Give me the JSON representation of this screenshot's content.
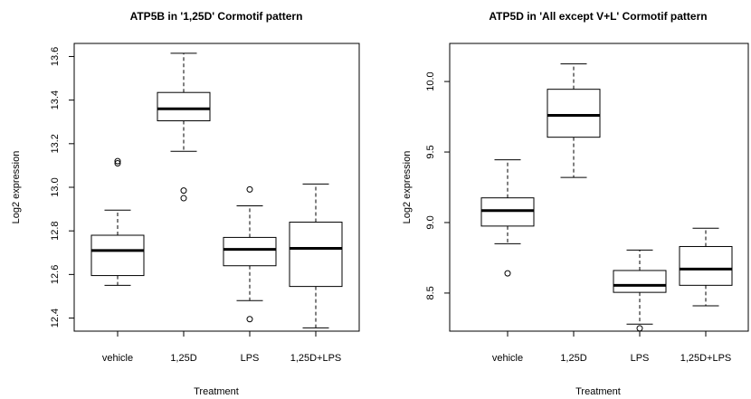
{
  "chart_data": [
    {
      "type": "boxplot",
      "title": "ATP5B in '1,25D' Cormotif pattern",
      "xlabel": "Treatment",
      "ylabel": "Log2 expression",
      "categories": [
        "vehicle",
        "1,25D",
        "LPS",
        "1,25D+LPS"
      ],
      "yticks": [
        "12.4",
        "12.6",
        "12.8",
        "13.0",
        "13.2",
        "13.4",
        "13.6"
      ],
      "ylim": [
        12.34,
        13.66
      ],
      "boxes": [
        {
          "category": "vehicle",
          "whisker_low": 12.55,
          "q1": 12.595,
          "median": 12.71,
          "q3": 12.78,
          "whisker_high": 12.895,
          "outliers": [
            13.11,
            13.12
          ]
        },
        {
          "category": "1,25D",
          "whisker_low": 13.165,
          "q1": 13.305,
          "median": 13.36,
          "q3": 13.435,
          "whisker_high": 13.615,
          "outliers": [
            12.95,
            12.985
          ]
        },
        {
          "category": "LPS",
          "whisker_low": 12.48,
          "q1": 12.64,
          "median": 12.715,
          "q3": 12.77,
          "whisker_high": 12.915,
          "outliers": [
            12.99,
            12.395
          ]
        },
        {
          "category": "1,25D+LPS",
          "whisker_low": 12.355,
          "q1": 12.545,
          "median": 12.72,
          "q3": 12.84,
          "whisker_high": 13.015,
          "outliers": []
        }
      ]
    },
    {
      "type": "boxplot",
      "title": "ATP5D in 'All except V+L' Cormotif pattern",
      "xlabel": "Treatment",
      "ylabel": "Log2 expression",
      "categories": [
        "vehicle",
        "1,25D",
        "LPS",
        "1,25D+LPS"
      ],
      "yticks": [
        "8.5",
        "9.0",
        "9.5",
        "10.0"
      ],
      "ylim": [
        8.23,
        10.27
      ],
      "boxes": [
        {
          "category": "vehicle",
          "whisker_low": 8.85,
          "q1": 8.975,
          "median": 9.085,
          "q3": 9.175,
          "whisker_high": 9.445,
          "outliers": [
            8.64
          ]
        },
        {
          "category": "1,25D",
          "whisker_low": 9.32,
          "q1": 9.605,
          "median": 9.76,
          "q3": 9.945,
          "whisker_high": 10.125,
          "outliers": []
        },
        {
          "category": "LPS",
          "whisker_low": 8.28,
          "q1": 8.505,
          "median": 8.555,
          "q3": 8.66,
          "whisker_high": 8.805,
          "outliers": [
            8.25
          ]
        },
        {
          "category": "1,25D+LPS",
          "whisker_low": 8.41,
          "q1": 8.555,
          "median": 8.67,
          "q3": 8.83,
          "whisker_high": 8.96,
          "outliers": []
        }
      ]
    }
  ]
}
